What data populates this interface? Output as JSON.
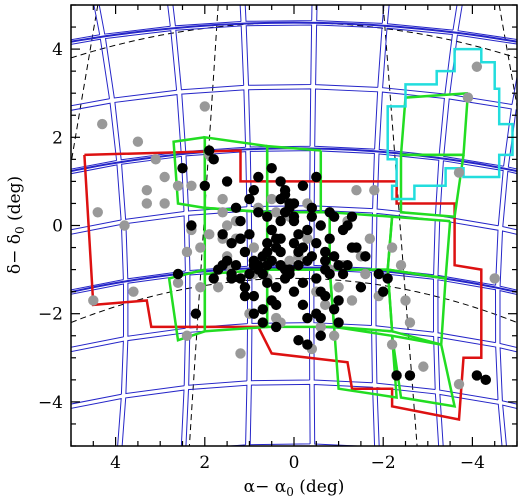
{
  "chart_data": {
    "type": "scatter",
    "title": "",
    "xlabel": "α− α₀ (deg)",
    "ylabel": "δ− δ₀ (deg)",
    "xlabel_parts": {
      "main": "α− α",
      "sub": "0",
      "unit": " (deg)"
    },
    "ylabel_parts": {
      "main": "δ− δ",
      "sub": "0",
      "unit": " (deg)"
    },
    "xlim": [
      5,
      -5
    ],
    "ylim": [
      -5,
      5
    ],
    "x_reversed": true,
    "xticks": [
      4,
      2,
      0,
      -2,
      -4
    ],
    "xtick_labels": [
      "4",
      "2",
      "0",
      "−2",
      "−4"
    ],
    "yticks": [
      4,
      2,
      0,
      -2,
      -4
    ],
    "ytick_labels": [
      "4",
      "2",
      "0",
      "−2",
      "−4"
    ],
    "colors": {
      "black_points": "#000000",
      "gray_points": "#999999",
      "blue_footprints": "#2626c8",
      "red_outline": "#dd1111",
      "green_outline": "#22dd22",
      "cyan_outline": "#22dddd",
      "dashed_grid": "#000000"
    },
    "series": [
      {
        "marker": "filled-circle-black",
        "x": [
          0.1,
          -0.5,
          -0.7,
          -0.3,
          0.3,
          0.8,
          -1.0,
          -0.2,
          0.5,
          1.2,
          -0.6,
          0.0,
          0.4,
          -0.9,
          0.7,
          1.0,
          -0.4,
          0.2,
          -0.1,
          0.6,
          -1.3,
          1.4,
          0.9,
          -0.8,
          0.3,
          -0.5,
          0.1,
          0.5,
          -0.2,
          0.8,
          1.1,
          -0.7,
          0.0,
          0.4,
          -1.1,
          1.3,
          0.2,
          -0.3,
          0.6,
          -0.6,
          0.9,
          1.5,
          -1.5,
          0.3,
          -0.1,
          0.7,
          1.2,
          -0.9,
          0.5,
          0.0,
          -0.4,
          0.2,
          1.0,
          -1.2,
          0.4,
          -0.2,
          0.8,
          -0.7,
          1.6,
          0.1,
          -1.0,
          0.6,
          0.3,
          -0.5,
          1.1,
          -0.3,
          0.9,
          0.0,
          -0.8,
          0.5,
          1.4,
          -1.4,
          0.2,
          0.7,
          -0.1,
          1.2,
          -0.6,
          0.4,
          1.7,
          -1.6,
          1.8,
          -1.9,
          0.3,
          -0.4,
          0.9,
          -1.1,
          1.0,
          0.6,
          0.1,
          -0.2,
          0.8,
          2.0,
          -0.8,
          0.2,
          1.3,
          -0.5,
          0.5,
          1.9,
          -1.3,
          2.3,
          1.5,
          1.8,
          2.5,
          -2.0,
          -2.1,
          -1.2,
          -0.9,
          2.2,
          2.6,
          -0.3,
          -2.3,
          -2.6,
          -4.1,
          -4.3,
          1.1,
          0.7,
          1.4,
          -0.6,
          0.0,
          0.3,
          -0.1,
          0.4,
          -1.0,
          1.6,
          0.9,
          -0.7,
          0.6,
          1.2
        ],
        "y": [
          -1.0,
          -1.2,
          -0.6,
          -0.8,
          -0.3,
          -0.9,
          -0.9,
          -0.5,
          -0.1,
          -1.2,
          0.0,
          -1.5,
          -0.5,
          -0.7,
          -0.7,
          -0.2,
          0.2,
          -1.0,
          -0.9,
          -1.3,
          -0.5,
          -0.4,
          -1.6,
          -0.3,
          -0.9,
          -0.4,
          0.4,
          -0.8,
          -1.8,
          -1.0,
          -0.6,
          -1.0,
          0.1,
          -1.4,
          -1.1,
          -0.9,
          -1.2,
          -0.1,
          -0.4,
          -1.5,
          -0.9,
          -0.8,
          -1.4,
          -0.6,
          -0.2,
          -1.1,
          -0.3,
          -1.9,
          -0.1,
          -0.4,
          -0.7,
          0.3,
          -1.1,
          -0.9,
          -1.8,
          -1.3,
          0.3,
          -1.6,
          -0.9,
          -1.1,
          -2.2,
          -0.9,
          0.6,
          -2.0,
          -1.4,
          -2.1,
          -2.0,
          0.2,
          -1.1,
          -1.7,
          -1.1,
          -0.5,
          0.8,
          -2.2,
          -2.6,
          0.1,
          -2.5,
          -2.3,
          -1.0,
          -0.7,
          -1.2,
          -1.1,
          1.0,
          0.4,
          0.8,
          -0.1,
          0.6,
          0.2,
          0.5,
          0.9,
          1.1,
          0.9,
          0.3,
          0.7,
          0.4,
          1.1,
          1.3,
          1.7,
          0.2,
          0.0,
          1.0,
          1.5,
          1.3,
          -1.5,
          -1.2,
          0.0,
          0.2,
          -2.0,
          -1.1,
          -2.7,
          -3.4,
          -3.4,
          -3.4,
          -3.5,
          -1.6,
          -1.9,
          -1.2,
          -2.1,
          0.5,
          0.1,
          -0.6,
          -0.3,
          -1.7,
          -0.2,
          -0.8,
          -0.8,
          -0.6,
          -0.3
        ]
      },
      {
        "marker": "filled-circle-gray",
        "x": [
          -4.1,
          -3.9,
          2.0,
          3.1,
          4.3,
          1.9,
          2.9,
          3.3,
          0.1,
          -0.3,
          0.8,
          2.3,
          -1.4,
          1.6,
          2.3,
          3.8,
          4.4,
          3.5,
          -3.7,
          0.6,
          1.5,
          -0.7,
          0.4,
          1.4,
          -0.3,
          2.4,
          -0.9,
          0.1,
          2.6,
          -2.6,
          -1.5,
          1.0,
          1.7,
          -2.2,
          -1.6,
          3.6,
          -2.5,
          -1.1,
          1.9,
          1.6,
          4.5,
          2.4,
          -0.9,
          -3.7,
          -2.9,
          0.3,
          -0.6,
          1.2,
          -0.4,
          0.9,
          2.1,
          -4.5,
          -1.8,
          -1.2,
          1.3,
          -0.1,
          2.6,
          1.5,
          0.4,
          -0.8,
          -1.3,
          1.3,
          0.9,
          -2.2,
          3.3,
          2.9,
          -1.7,
          1.6,
          -1.9,
          -2.4,
          2.1,
          -0.5,
          0.5,
          -1.0
        ],
        "y": [
          3.6,
          2.9,
          2.7,
          1.5,
          2.3,
          1.6,
          1.1,
          0.5,
          0.2,
          0.5,
          0.4,
          0.9,
          0.8,
          0.3,
          -0.1,
          0.0,
          0.3,
          1.9,
          1.2,
          -1.2,
          -0.7,
          -1.8,
          -2.1,
          -1.0,
          -0.3,
          -0.6,
          0.2,
          -0.8,
          -1.3,
          -2.2,
          -0.7,
          -2.0,
          -1.4,
          -0.5,
          -1.1,
          -1.5,
          -1.7,
          -0.9,
          -0.2,
          0.6,
          -1.7,
          -2.5,
          -2.5,
          -3.6,
          -3.2,
          -2.2,
          -2.3,
          -2.9,
          -2.8,
          -1.1,
          -0.5,
          -1.2,
          0.8,
          0.1,
          0.1,
          -0.7,
          0.9,
          0.0,
          0.3,
          -1.0,
          -1.7,
          -0.3,
          -0.5,
          -2.7,
          0.8,
          0.5,
          -0.3,
          -0.3,
          -1.6,
          -0.9,
          -1.4,
          -1.5,
          0.6,
          -1.4
        ]
      }
    ],
    "legend": "none",
    "grid": false,
    "overlays": [
      "blue tile footprints",
      "red survey outline",
      "green field outlines",
      "cyan outline",
      "dashed coordinate grid"
    ]
  }
}
